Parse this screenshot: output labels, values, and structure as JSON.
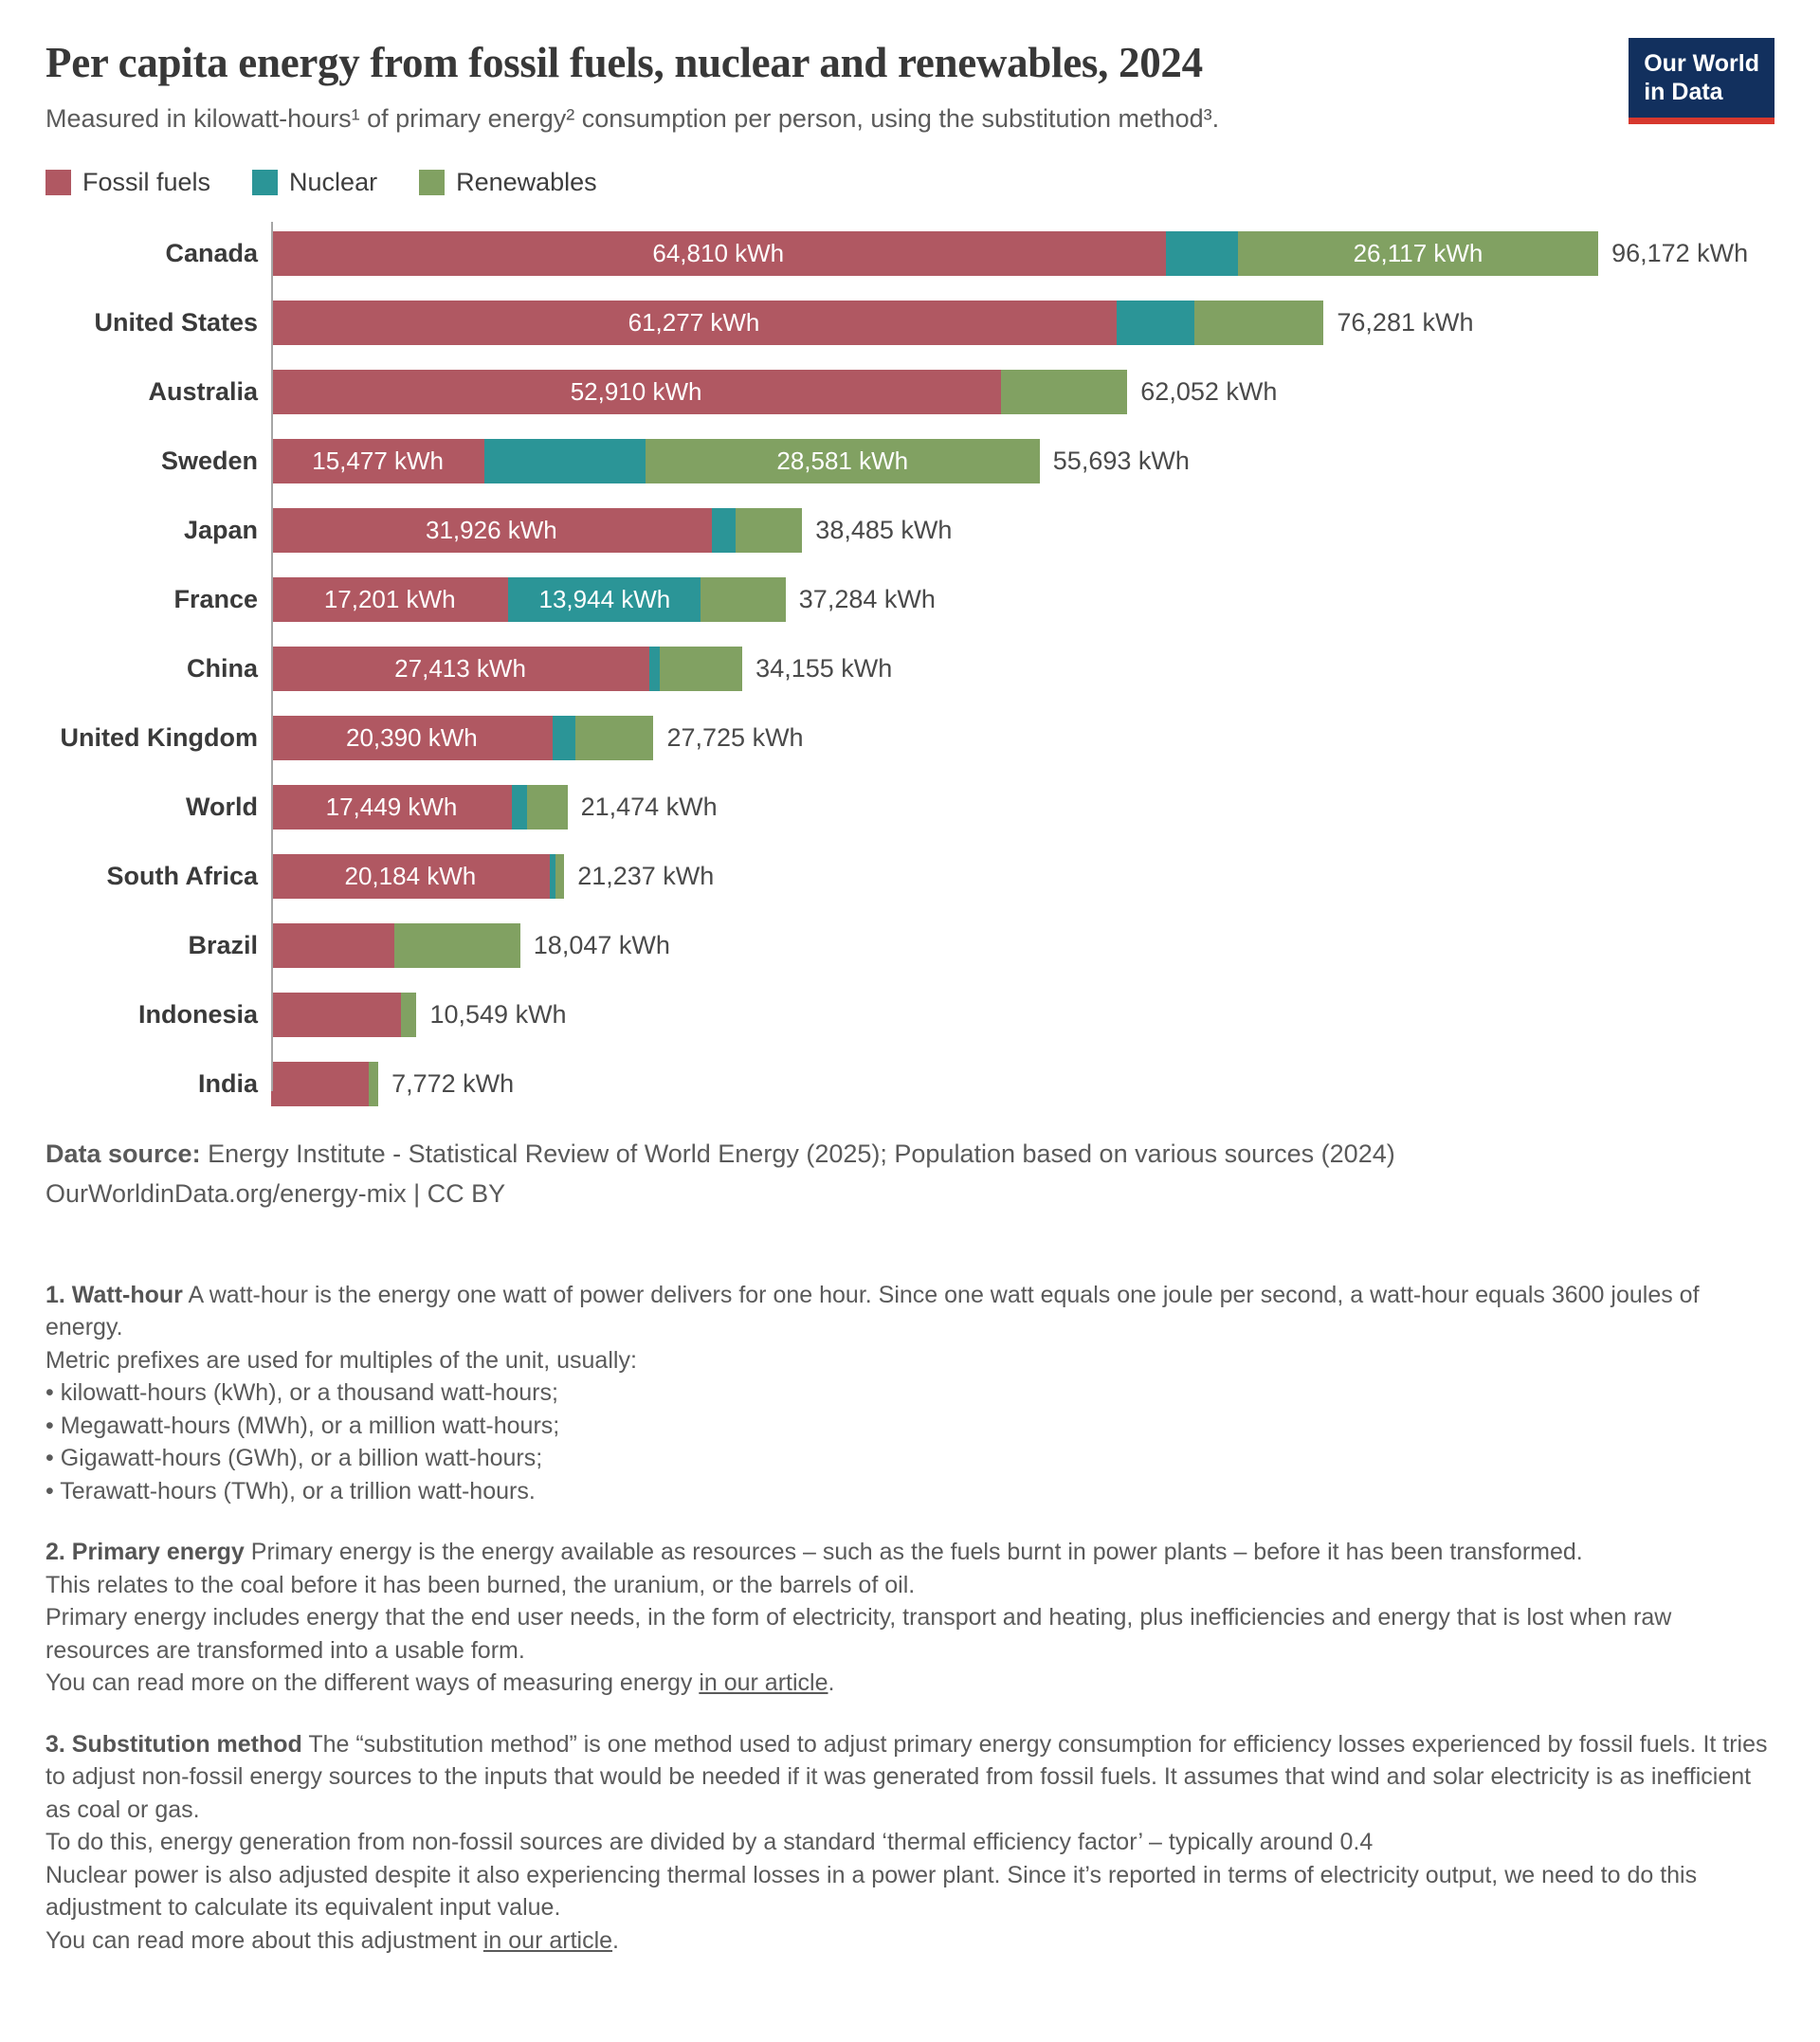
{
  "header": {
    "title": "Per capita energy from fossil fuels, nuclear and renewables, 2024",
    "subtitle": "Measured in kilowatt-hours¹ of primary energy² consumption per person, using the substitution method³.",
    "logo": {
      "line1": "Our World",
      "line2": "in Data"
    }
  },
  "chart_data": {
    "type": "bar",
    "orientation": "horizontal",
    "stacked": true,
    "unit": "kWh",
    "xlim": [
      0,
      96172
    ],
    "categories": [
      "Canada",
      "United States",
      "Australia",
      "Sweden",
      "Japan",
      "France",
      "China",
      "United Kingdom",
      "World",
      "South Africa",
      "Brazil",
      "Indonesia",
      "India"
    ],
    "series": [
      {
        "name": "Fossil fuels",
        "key": "fossil",
        "color": "#b05862",
        "values": [
          64810,
          61277,
          52910,
          15477,
          31926,
          17201,
          27413,
          20390,
          17449,
          20184,
          8900,
          9400,
          7050
        ]
      },
      {
        "name": "Nuclear",
        "key": "nuclear",
        "color": "#2b9597",
        "values": [
          5245,
          5600,
          0,
          11635,
          1750,
          13944,
          750,
          1700,
          1100,
          450,
          0,
          0,
          0
        ]
      },
      {
        "name": "Renewables",
        "key": "renewables",
        "color": "#81a162",
        "values": [
          26117,
          9404,
          9142,
          28581,
          4809,
          6139,
          5992,
          5635,
          2925,
          603,
          9147,
          1149,
          722
        ]
      }
    ],
    "totals": [
      96172,
      76281,
      62052,
      55693,
      38485,
      37284,
      34155,
      27725,
      21474,
      21237,
      18047,
      10549,
      7772
    ],
    "segment_labels": [
      {
        "fossil": "64,810 kWh",
        "renewables": "26,117 kWh"
      },
      {
        "fossil": "61,277 kWh"
      },
      {
        "fossil": "52,910 kWh"
      },
      {
        "fossil": "15,477 kWh",
        "renewables": "28,581 kWh"
      },
      {
        "fossil": "31,926 kWh"
      },
      {
        "fossil": "17,201 kWh",
        "nuclear": "13,944 kWh"
      },
      {
        "fossil": "27,413 kWh"
      },
      {
        "fossil": "20,390 kWh"
      },
      {
        "fossil": "17,449 kWh"
      },
      {
        "fossil": "20,184 kWh"
      },
      {},
      {},
      {}
    ],
    "total_labels": [
      "96,172 kWh",
      "76,281 kWh",
      "62,052 kWh",
      "55,693 kWh",
      "38,485 kWh",
      "37,284 kWh",
      "34,155 kWh",
      "27,725 kWh",
      "21,474 kWh",
      "21,237 kWh",
      "18,047 kWh",
      "10,549 kWh",
      "7,772 kWh"
    ]
  },
  "footer": {
    "datasource_label": "Data source:",
    "datasource_text": "Energy Institute - Statistical Review of World Energy (2025); Population based on various sources (2024)",
    "url": "OurWorldinData.org/energy-mix",
    "separator": " | ",
    "license": "CC BY"
  },
  "footnotes": [
    {
      "number": "1.",
      "title": "Watt-hour",
      "lines": [
        "A watt-hour is the energy one watt of power delivers for one hour. Since one watt equals one joule per second, a watt-hour equals 3600 joules of energy.",
        "Metric prefixes are used for multiples of the unit, usually:",
        "• kilowatt-hours (kWh), or a thousand watt-hours;",
        "• Megawatt-hours (MWh), or a million watt-hours;",
        "• Gigawatt-hours (GWh), or a billion watt-hours;",
        "• Terawatt-hours (TWh), or a trillion watt-hours."
      ]
    },
    {
      "number": "2.",
      "title": "Primary energy",
      "lines": [
        "Primary energy is the energy available as resources – such as the fuels burnt in power plants – before it has been transformed.",
        "This relates to the coal before it has been burned, the uranium, or the barrels of oil.",
        "Primary energy includes energy that the end user needs, in the form of electricity, transport and heating, plus inefficiencies and energy that is lost when raw resources are transformed into a usable form.",
        "You can read more on the different ways of measuring energy {link}."
      ],
      "link_text": "in our article"
    },
    {
      "number": "3.",
      "title": "Substitution method",
      "lines": [
        "The “substitution method” is one method used to adjust primary energy consumption for efficiency losses experienced by fossil fuels. It tries to adjust non-fossil energy sources to the inputs that would be needed if it was generated from fossil fuels. It assumes that wind and solar electricity is as inefficient as coal or gas.",
        "To do this, energy generation from non-fossil sources are divided by a standard ‘thermal efficiency factor’ – typically around 0.4",
        "Nuclear power is also adjusted despite it also experiencing thermal losses in a power plant. Since it’s reported in terms of electricity output, we need to do this adjustment to calculate its equivalent input value.",
        "You can read more about this adjustment {link}."
      ],
      "link_text": "in our article"
    }
  ]
}
